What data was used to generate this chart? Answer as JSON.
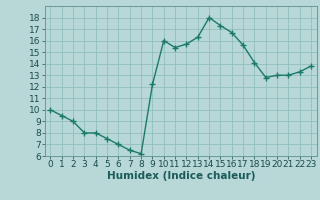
{
  "x": [
    0,
    1,
    2,
    3,
    4,
    5,
    6,
    7,
    8,
    9,
    10,
    11,
    12,
    13,
    14,
    15,
    16,
    17,
    18,
    19,
    20,
    21,
    22,
    23
  ],
  "y": [
    10,
    9.5,
    9.0,
    8.0,
    8.0,
    7.5,
    7.0,
    6.5,
    6.2,
    12.2,
    16.0,
    15.4,
    15.7,
    16.3,
    18.0,
    17.3,
    16.7,
    15.6,
    14.1,
    12.8,
    13.0,
    13.0,
    13.3,
    13.8
  ],
  "line_color": "#1a7a6a",
  "marker": "+",
  "bg_color": "#b8d8d8",
  "grid_color": "#90bebe",
  "xlabel": "Humidex (Indice chaleur)",
  "ylim": [
    6,
    19
  ],
  "xlim": [
    -0.5,
    23.5
  ],
  "yticks": [
    6,
    7,
    8,
    9,
    10,
    11,
    12,
    13,
    14,
    15,
    16,
    17,
    18
  ],
  "xticks": [
    0,
    1,
    2,
    3,
    4,
    5,
    6,
    7,
    8,
    9,
    10,
    11,
    12,
    13,
    14,
    15,
    16,
    17,
    18,
    19,
    20,
    21,
    22,
    23
  ],
  "tick_fontsize": 6.5,
  "xlabel_fontsize": 7.5,
  "linewidth": 1.0,
  "markersize": 4
}
